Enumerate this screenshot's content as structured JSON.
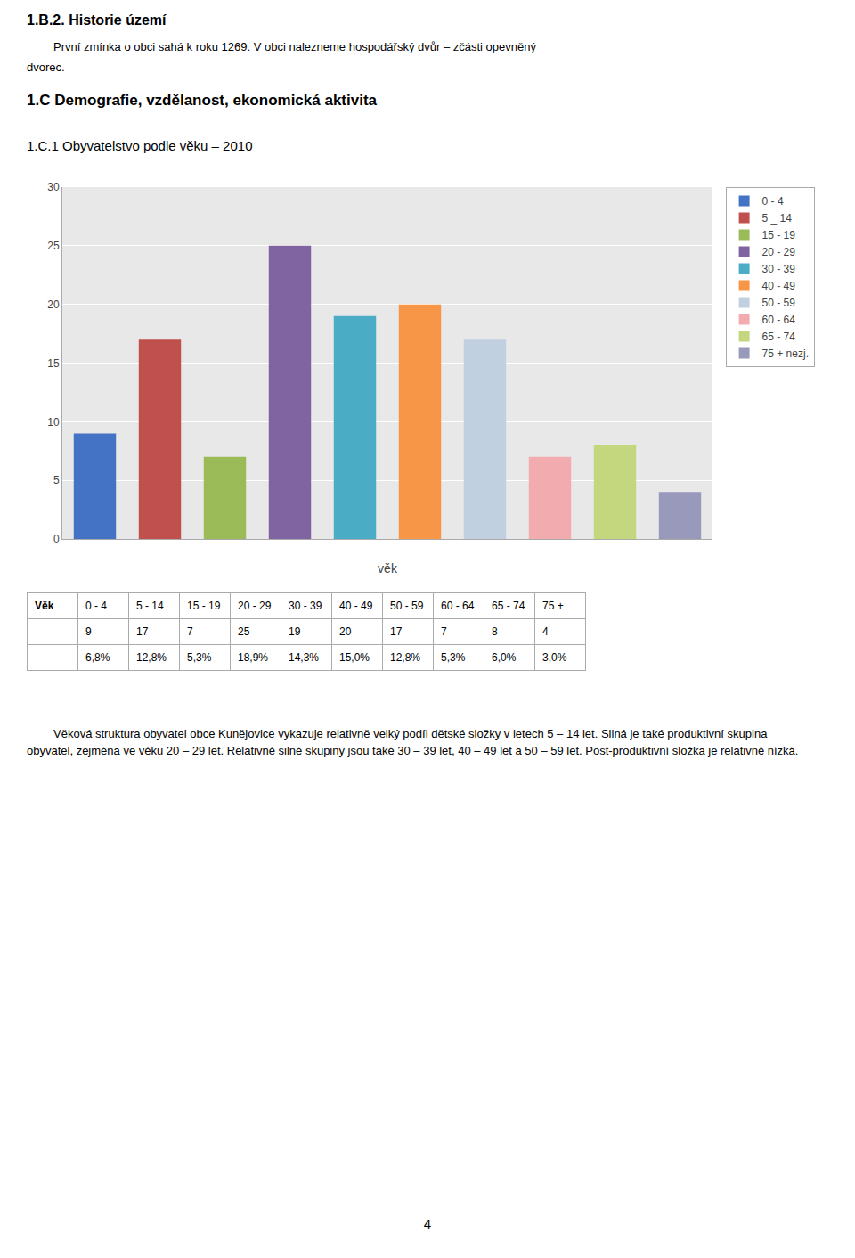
{
  "chart_data": {
    "type": "bar",
    "title": "1.C.1    Obyvatelstvo podle věku – 2010",
    "annotations": [
      "1.B.2.   Historie území",
      "První zmínka o obci sahá k roku 1269. V obci nalezneme hospodářský dvůr – zčásti opevněný",
      "dvorec.",
      "1.C    Demografie, vzdělanost, ekonomická aktivita",
      "Věková struktura obyvatel obce Kunějovice vykazuje relativně velký podíl dětské složky v letech 5 – 14 let. Silná je také produktivní skupina obyvatel, zejména ve věku 20 – 29 let. Relativně silné skupiny jsou také 30 – 39 let, 40 – 49 let a 50 – 59 let. Post-produktivní složka je relativně nízká.",
      "4"
    ],
    "categories": [
      "0 - 4",
      "5 _ 14",
      "15 - 19",
      "20 - 29",
      "30 - 39",
      "40 - 49",
      "50 - 59",
      "60 - 64",
      "65 - 74",
      "75 + nezj."
    ],
    "values": [
      9,
      17,
      7,
      25,
      19,
      20,
      17,
      7,
      8,
      4
    ],
    "colors": [
      "#4472C4",
      "#C0504D",
      "#9BBB59",
      "#8064A2",
      "#4BACC6",
      "#F79646",
      "#C0D0E0",
      "#F2ACB0",
      "#C4D67E",
      "#9999BB"
    ],
    "xlabel": "věk",
    "ylim": [
      0,
      30
    ],
    "yticks": [
      0,
      5,
      10,
      15,
      20,
      25,
      30
    ],
    "grid": true,
    "legend": "right",
    "tick_labels": "y",
    "table": {
      "header": [
        "Věk",
        "0 - 4",
        "5 - 14",
        "15 - 19",
        "20 - 29",
        "30 - 39",
        "40 - 49",
        "50 - 59",
        "60 - 64",
        "65 - 74",
        "75 +"
      ],
      "rows": [
        [
          null,
          "9",
          "17",
          "7",
          "25",
          "19",
          "20",
          "17",
          "7",
          "8",
          "4"
        ],
        [
          null,
          "6,8%",
          "12,8%",
          "5,3%",
          "18,9%",
          "14,3%",
          "15,0%",
          "12,8%",
          "5,3%",
          "6,0%",
          "3,0%"
        ]
      ]
    }
  }
}
